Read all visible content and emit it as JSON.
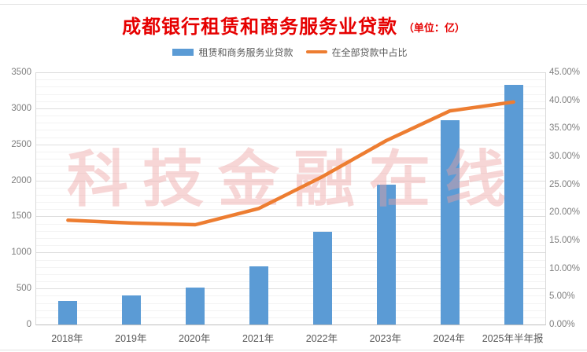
{
  "page": {
    "title": "成都银行租赁和商务服务业贷款",
    "title_unit": "（单位：亿）",
    "watermark": "科技金融在线"
  },
  "legend": {
    "bar_label": "租赁和商务服务业贷款",
    "line_label": "在全部贷款中占比"
  },
  "colors": {
    "bar": "#5B9BD5",
    "line": "#ED7D31",
    "title": "#E60000",
    "watermark": "#EDA0A0",
    "axis_text": "#7F7F7F",
    "grid_major": "#DEDEDE",
    "grid_minor": "#F3F3F3"
  },
  "chart_data": {
    "type": "combo",
    "title": "成都银行租赁和商务服务业贷款（单位：亿）",
    "categories": [
      "2018年",
      "2019年",
      "2020年",
      "2021年",
      "2022年",
      "2023年",
      "2024年",
      "2025年半年报"
    ],
    "series": [
      {
        "name": "租赁和商务服务业贷款",
        "type": "bar",
        "axis": "left",
        "color": "#5B9BD5",
        "values": [
          330,
          400,
          515,
          810,
          1290,
          1945,
          2840,
          3330
        ]
      },
      {
        "name": "在全部贷款中占比",
        "type": "line",
        "axis": "right",
        "color": "#ED7D31",
        "values": [
          18.6,
          18.1,
          17.8,
          20.7,
          26.4,
          32.8,
          38.1,
          39.7
        ]
      }
    ],
    "left_axis": {
      "min": 0,
      "max": 3500,
      "step": 500,
      "minor_step": 100,
      "tick_labels": [
        "0",
        "500",
        "1000",
        "1500",
        "2000",
        "2500",
        "3000",
        "3500"
      ]
    },
    "right_axis": {
      "min": 0,
      "max": 45,
      "step": 5,
      "tick_labels": [
        "0.00%",
        "5.00%",
        "10.00%",
        "15.00%",
        "20.00%",
        "25.00%",
        "30.00%",
        "35.00%",
        "40.00%",
        "45.00%"
      ]
    },
    "legend_position": "top",
    "grid": true,
    "watermark": "科技金融在线"
  }
}
